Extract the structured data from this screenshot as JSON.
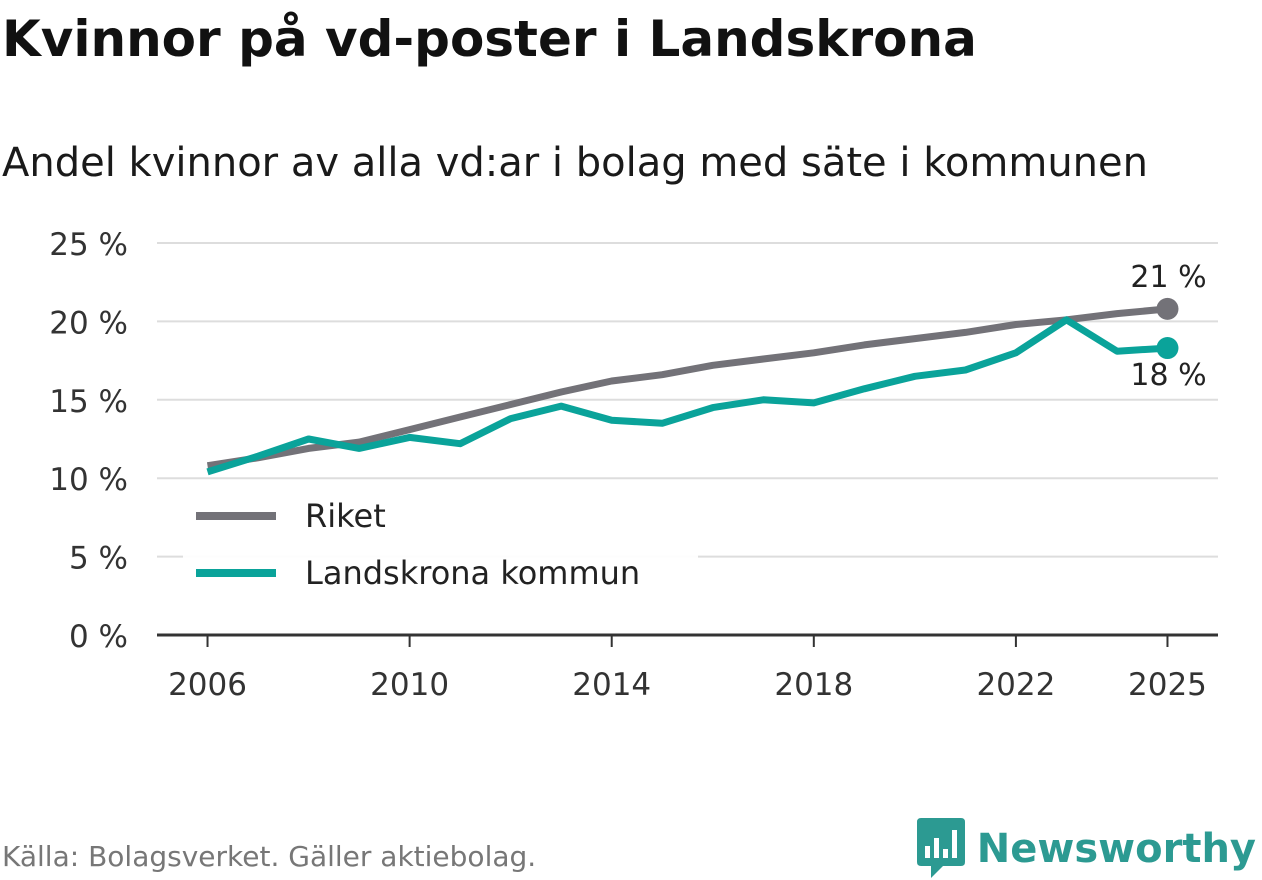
{
  "title": "Kvinnor på vd-poster i Landskrona",
  "subtitle": "Andel kvinnor av alla vd:ar i bolag med säte i kommunen",
  "source": "Källa: Bolagsverket. Gäller aktiebolag.",
  "brand": "Newsworthy",
  "colors": {
    "riket": "#737278",
    "landskrona": "#0aa39a",
    "grid": "#dddddd",
    "axis": "#333333"
  },
  "chart_data": {
    "type": "line",
    "title": "Kvinnor på vd-poster i Landskrona",
    "xlabel": "",
    "ylabel": "",
    "x": [
      2006,
      2007,
      2008,
      2009,
      2010,
      2011,
      2012,
      2013,
      2014,
      2015,
      2016,
      2017,
      2018,
      2019,
      2020,
      2021,
      2022,
      2023,
      2024,
      2025
    ],
    "xlim": [
      2005,
      2026
    ],
    "ylim": [
      0,
      25
    ],
    "x_ticks": [
      2006,
      2010,
      2014,
      2018,
      2022,
      2025
    ],
    "x_tick_labels": [
      "2006",
      "2010",
      "2014",
      "2018",
      "2022",
      "2025"
    ],
    "y_ticks": [
      0,
      5,
      10,
      15,
      20,
      25
    ],
    "y_tick_labels": [
      "0 %",
      "5 %",
      "10 %",
      "15 %",
      "20 %",
      "25 %"
    ],
    "grid": true,
    "legend": "bottom-left",
    "series": [
      {
        "name": "Riket",
        "color": "#737278",
        "end_label": "21 %",
        "values": [
          10.8,
          11.3,
          11.9,
          12.3,
          13.1,
          13.9,
          14.7,
          15.5,
          16.2,
          16.6,
          17.2,
          17.6,
          18.0,
          18.5,
          18.9,
          19.3,
          19.8,
          20.1,
          20.5,
          20.8
        ]
      },
      {
        "name": "Landskrona kommun",
        "color": "#0aa39a",
        "end_label": "18 %",
        "values": [
          10.4,
          11.4,
          12.5,
          11.9,
          12.6,
          12.2,
          13.8,
          14.6,
          13.7,
          13.5,
          14.5,
          15.0,
          14.8,
          15.7,
          16.5,
          16.9,
          18.0,
          20.1,
          18.1,
          18.3
        ]
      }
    ]
  }
}
